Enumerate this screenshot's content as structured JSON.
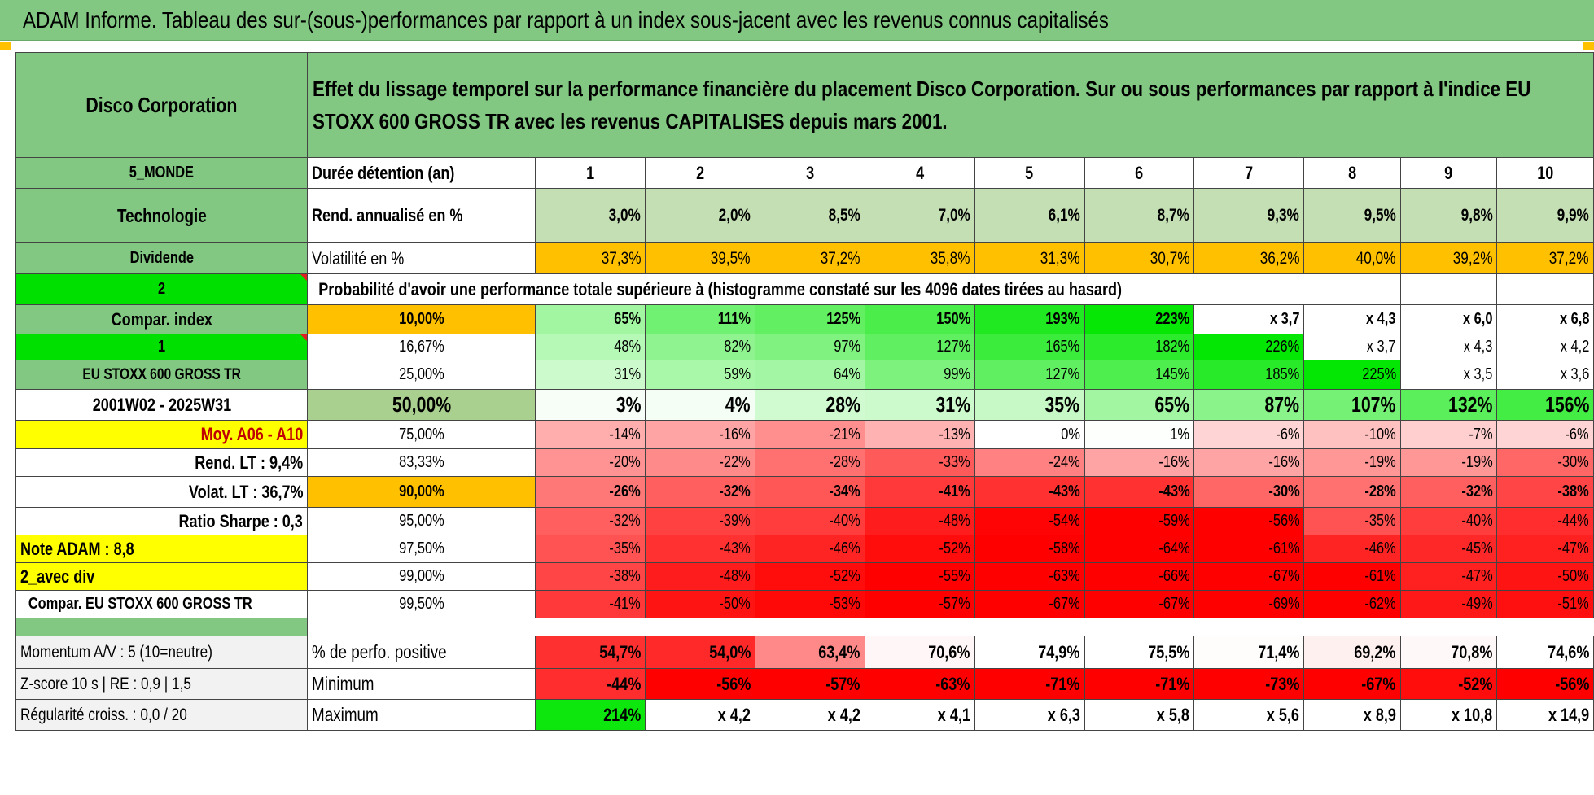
{
  "title": "ADAM Informe. Tableau des sur-(sous-)performances par rapport à un index sous-jacent avec les revenus connus capitalisés",
  "company": "Disco Corporation",
  "header_text": "Effet du lissage temporel sur la performance financière du placement Disco Corporation. Sur ou sous performances par rapport à l'indice EU STOXX 600 GROSS TR avec les revenus CAPITALISES depuis mars 2001.",
  "side": {
    "zone": "5_MONDE",
    "sector": "Technologie",
    "dividend_label": "Dividende",
    "dividend_value": "2",
    "compar_index": "Compar. index",
    "compar_value": "1",
    "index_name": "EU STOXX 600 GROSS TR",
    "period": "2001W02 - 2025W31",
    "moy": "Moy. A06 - A10",
    "rend_lt": "Rend. LT :   9,4%",
    "volat_lt": "Volat. LT :   36,7%",
    "sharpe": "Ratio Sharpe :    0,3",
    "note": "Note ADAM : 8,8",
    "avec_div": "2_avec div",
    "compar_full": "Compar. EU STOXX 600 GROSS TR"
  },
  "duree_label": "Durée détention (an)",
  "years": [
    "1",
    "2",
    "3",
    "4",
    "5",
    "6",
    "7",
    "8",
    "9",
    "10"
  ],
  "rend_label": "Rend. annualisé en %",
  "rend": [
    "3,0%",
    "2,0%",
    "8,5%",
    "7,0%",
    "6,1%",
    "8,7%",
    "9,3%",
    "9,5%",
    "9,8%",
    "9,9%"
  ],
  "vol_label": "Volatilité en %",
  "vol": [
    "37,3%",
    "39,5%",
    "37,2%",
    "35,8%",
    "31,3%",
    "30,7%",
    "36,2%",
    "40,0%",
    "39,2%",
    "37,2%"
  ],
  "prob_label": "Probabilité d'avoir une performance totale supérieure à (histogramme constaté sur les 4096 dates tirées au hasard)",
  "rows": [
    {
      "q": "10,00%",
      "v": [
        "65%",
        "111%",
        "125%",
        "150%",
        "193%",
        "223%",
        "x 3,7",
        "x 4,3",
        "x 6,0",
        "x 6,8"
      ]
    },
    {
      "q": "16,67%",
      "v": [
        "48%",
        "82%",
        "97%",
        "127%",
        "165%",
        "182%",
        "226%",
        "x 3,7",
        "x 4,3",
        "x 4,2"
      ]
    },
    {
      "q": "25,00%",
      "v": [
        "31%",
        "59%",
        "64%",
        "99%",
        "127%",
        "145%",
        "185%",
        "225%",
        "x 3,5",
        "x 3,6"
      ]
    },
    {
      "q": "50,00%",
      "v": [
        "3%",
        "4%",
        "28%",
        "31%",
        "35%",
        "65%",
        "87%",
        "107%",
        "132%",
        "156%"
      ]
    },
    {
      "q": "75,00%",
      "v": [
        "-14%",
        "-16%",
        "-21%",
        "-13%",
        "0%",
        "1%",
        "-6%",
        "-10%",
        "-7%",
        "-6%"
      ]
    },
    {
      "q": "83,33%",
      "v": [
        "-20%",
        "-22%",
        "-28%",
        "-33%",
        "-24%",
        "-16%",
        "-16%",
        "-19%",
        "-19%",
        "-30%"
      ]
    },
    {
      "q": "90,00%",
      "v": [
        "-26%",
        "-32%",
        "-34%",
        "-41%",
        "-43%",
        "-43%",
        "-30%",
        "-28%",
        "-32%",
        "-38%"
      ]
    },
    {
      "q": "95,00%",
      "v": [
        "-32%",
        "-39%",
        "-40%",
        "-48%",
        "-54%",
        "-59%",
        "-56%",
        "-35%",
        "-40%",
        "-44%"
      ]
    },
    {
      "q": "97,50%",
      "v": [
        "-35%",
        "-43%",
        "-46%",
        "-52%",
        "-58%",
        "-64%",
        "-61%",
        "-46%",
        "-45%",
        "-47%"
      ]
    },
    {
      "q": "99,00%",
      "v": [
        "-38%",
        "-48%",
        "-52%",
        "-55%",
        "-63%",
        "-66%",
        "-67%",
        "-61%",
        "-47%",
        "-50%"
      ]
    },
    {
      "q": "99,50%",
      "v": [
        "-41%",
        "-50%",
        "-53%",
        "-57%",
        "-67%",
        "-67%",
        "-69%",
        "-62%",
        "-49%",
        "-51%"
      ]
    }
  ],
  "bottom": [
    {
      "side": "Momentum A/V : 5 (10=neutre)",
      "label": "% de perfo. positive",
      "v": [
        "54,7%",
        "54,0%",
        "63,4%",
        "70,6%",
        "74,9%",
        "75,5%",
        "71,4%",
        "69,2%",
        "70,8%",
        "74,6%"
      ]
    },
    {
      "side": "Z-score 10 s | RE : 0,9 | 1,5",
      "label": "Minimum",
      "v": [
        "-44%",
        "-56%",
        "-57%",
        "-63%",
        "-71%",
        "-71%",
        "-73%",
        "-67%",
        "-52%",
        "-56%"
      ]
    },
    {
      "side": "Régularité croiss. : 0,0 / 20",
      "label": "Maximum",
      "v": [
        "214%",
        "x 4,2",
        "x 4,2",
        "x 4,1",
        "x 6,3",
        "x 5,8",
        "x 5,6",
        "x 8,9",
        "x 10,8",
        "x 14,9"
      ]
    }
  ],
  "colors": {
    "header_green": "#82c882",
    "light_green": "#c4dfb4",
    "orange": "#ffc000",
    "bright_green": "#00e000",
    "yellow": "#ffff00",
    "red_text": "#e02020"
  }
}
